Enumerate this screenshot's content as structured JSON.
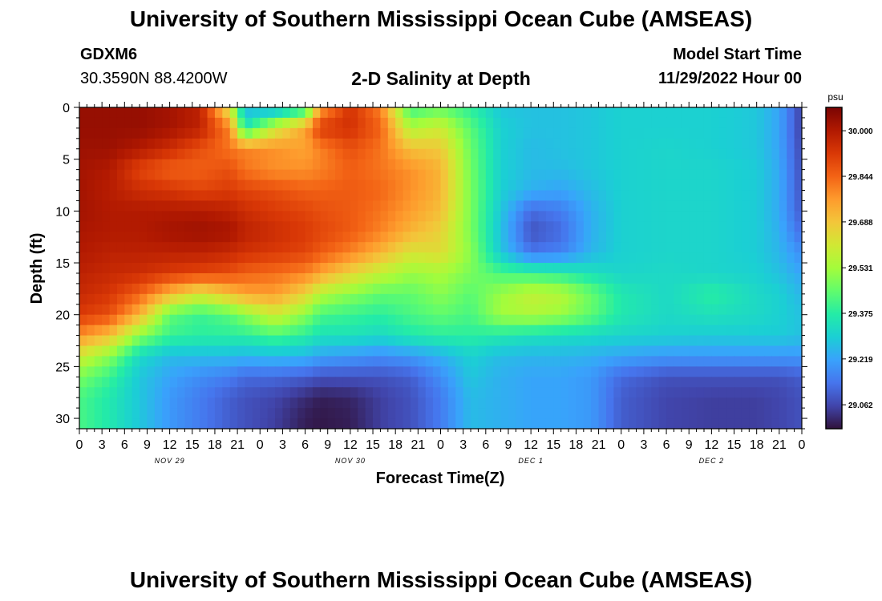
{
  "header": {
    "title": "University of Southern Mississippi Ocean Cube (AMSEAS)",
    "station": "GDXM6",
    "coords": "30.3590N  88.4200W",
    "plot_title": "2-D Salinity at Depth",
    "model_start_label": "Model Start Time",
    "model_start_value": "11/29/2022 Hour 00"
  },
  "footer": {
    "title": "University of Southern Mississippi Ocean Cube (AMSEAS)"
  },
  "colors": {
    "background": "#ffffff",
    "axis": "#000000"
  },
  "chart_data": {
    "type": "heatmap",
    "title": "2-D Salinity at Depth",
    "xlabel": "Forecast Time(Z)",
    "ylabel": "Depth (ft)",
    "x_range_hours": [
      0,
      96
    ],
    "y_range_ft": [
      0,
      31
    ],
    "x_tick_labels": [
      "0",
      "3",
      "6",
      "9",
      "12",
      "15",
      "18",
      "21",
      "0",
      "3",
      "6",
      "9",
      "12",
      "15",
      "18",
      "21",
      "0",
      "3",
      "6",
      "9",
      "12",
      "15",
      "18",
      "21",
      "0",
      "3",
      "6",
      "9",
      "12",
      "15",
      "18",
      "21",
      "0"
    ],
    "y_ticks": [
      0,
      5,
      10,
      15,
      20,
      25,
      30
    ],
    "day_labels": [
      {
        "hour": 12,
        "label": "NOV 29"
      },
      {
        "hour": 36,
        "label": "NOV 30"
      },
      {
        "hour": 60,
        "label": "DEC 1"
      },
      {
        "hour": 84,
        "label": "DEC 2"
      }
    ],
    "colorbar": {
      "unit": "psu",
      "range": [
        28.98,
        30.08
      ],
      "tick_values": [
        30.0,
        29.844,
        29.688,
        29.531,
        29.375,
        29.219,
        29.062
      ],
      "tick_labels": [
        "30.000",
        "29.844",
        "29.688",
        "29.531",
        "29.375",
        "29.219",
        "29.062"
      ],
      "colors": [
        "#30123b",
        "#4145ab",
        "#4675ed",
        "#39a2fc",
        "#1bcfd4",
        "#24eca6",
        "#61fc6c",
        "#a4fc3b",
        "#d1e834",
        "#f3c63a",
        "#fe9b2d",
        "#f36315",
        "#d93806",
        "#b11901",
        "#7a0403"
      ]
    },
    "depth_levels_ft": [
      0,
      2,
      4,
      6,
      8,
      10,
      12,
      14,
      16,
      18,
      20,
      22,
      24,
      26,
      28,
      30,
      31
    ],
    "time_knots_hours": [
      0,
      4,
      8,
      12,
      16,
      20,
      22,
      26,
      30,
      32,
      36,
      40,
      44,
      48,
      52,
      56,
      60,
      64,
      68,
      72,
      78,
      84,
      90,
      93,
      96
    ],
    "salinity_psu": [
      [
        30.04,
        30.04,
        30.04,
        30.02,
        29.98,
        29.6,
        29.25,
        29.22,
        29.35,
        29.75,
        29.94,
        29.8,
        29.4,
        29.45,
        29.38,
        29.28,
        29.27,
        29.27,
        29.28,
        29.3,
        29.3,
        29.3,
        29.28,
        29.22,
        29.05
      ],
      [
        30.04,
        30.04,
        30.04,
        30.02,
        29.98,
        29.8,
        29.35,
        29.6,
        29.75,
        29.92,
        29.94,
        29.85,
        29.55,
        29.6,
        29.44,
        29.3,
        29.27,
        29.27,
        29.28,
        29.3,
        29.3,
        29.3,
        29.28,
        29.22,
        29.05
      ],
      [
        30.03,
        30.03,
        30.0,
        29.95,
        29.88,
        29.82,
        29.8,
        29.78,
        29.75,
        29.8,
        29.88,
        29.82,
        29.7,
        29.68,
        29.46,
        29.3,
        29.26,
        29.27,
        29.28,
        29.3,
        29.31,
        29.3,
        29.28,
        29.22,
        29.06
      ],
      [
        30.02,
        30.0,
        29.9,
        29.85,
        29.85,
        29.88,
        29.82,
        29.78,
        29.78,
        29.8,
        29.85,
        29.82,
        29.78,
        29.72,
        29.47,
        29.3,
        29.26,
        29.26,
        29.28,
        29.3,
        29.31,
        29.31,
        29.29,
        29.23,
        29.07
      ],
      [
        30.02,
        29.99,
        29.95,
        29.93,
        29.9,
        29.92,
        29.9,
        29.88,
        29.85,
        29.85,
        29.86,
        29.84,
        29.78,
        29.72,
        29.48,
        29.3,
        29.24,
        29.22,
        29.26,
        29.3,
        29.31,
        29.31,
        29.29,
        29.23,
        29.08
      ],
      [
        30.02,
        30.0,
        30.0,
        30.0,
        30.0,
        29.98,
        29.95,
        29.92,
        29.9,
        29.88,
        29.86,
        29.82,
        29.76,
        29.7,
        29.48,
        29.28,
        29.12,
        29.15,
        29.24,
        29.3,
        29.31,
        29.31,
        29.29,
        29.23,
        29.09
      ],
      [
        30.01,
        30.0,
        30.0,
        30.02,
        30.03,
        30.02,
        29.98,
        29.95,
        29.92,
        29.9,
        29.86,
        29.8,
        29.72,
        29.66,
        29.48,
        29.27,
        29.08,
        29.12,
        29.24,
        29.3,
        29.31,
        29.31,
        29.29,
        29.24,
        29.12
      ],
      [
        30.0,
        29.98,
        29.98,
        29.98,
        29.98,
        29.96,
        29.94,
        29.92,
        29.9,
        29.86,
        29.8,
        29.72,
        29.62,
        29.64,
        29.5,
        29.28,
        29.14,
        29.16,
        29.25,
        29.3,
        29.31,
        29.31,
        29.29,
        29.25,
        29.18
      ],
      [
        29.98,
        29.96,
        29.95,
        29.92,
        29.9,
        29.88,
        29.85,
        29.83,
        29.8,
        29.75,
        29.66,
        29.58,
        29.52,
        29.54,
        29.48,
        29.42,
        29.4,
        29.38,
        29.34,
        29.31,
        29.32,
        29.31,
        29.3,
        29.27,
        29.22
      ],
      [
        29.96,
        29.93,
        29.85,
        29.72,
        29.62,
        29.7,
        29.75,
        29.76,
        29.66,
        29.56,
        29.5,
        29.45,
        29.45,
        29.5,
        29.44,
        29.52,
        29.58,
        29.56,
        29.46,
        29.36,
        29.32,
        29.38,
        29.32,
        29.3,
        29.25
      ],
      [
        29.92,
        29.88,
        29.72,
        29.45,
        29.4,
        29.44,
        29.5,
        29.6,
        29.5,
        29.42,
        29.4,
        29.38,
        29.42,
        29.45,
        29.42,
        29.53,
        29.55,
        29.52,
        29.45,
        29.36,
        29.32,
        29.34,
        29.32,
        29.3,
        29.27
      ],
      [
        29.78,
        29.7,
        29.5,
        29.4,
        29.38,
        29.38,
        29.38,
        29.42,
        29.38,
        29.34,
        29.34,
        29.32,
        29.36,
        29.38,
        29.38,
        29.36,
        29.34,
        29.33,
        29.32,
        29.31,
        29.3,
        29.29,
        29.29,
        29.29,
        29.27
      ],
      [
        29.6,
        29.5,
        29.32,
        29.26,
        29.26,
        29.26,
        29.25,
        29.26,
        29.25,
        29.22,
        29.2,
        29.18,
        29.2,
        29.24,
        29.3,
        29.26,
        29.25,
        29.25,
        29.24,
        29.22,
        29.2,
        29.2,
        29.2,
        29.2,
        29.2
      ],
      [
        29.48,
        29.4,
        29.28,
        29.22,
        29.18,
        29.15,
        29.12,
        29.12,
        29.1,
        29.08,
        29.08,
        29.08,
        29.1,
        29.18,
        29.28,
        29.24,
        29.22,
        29.22,
        29.2,
        29.12,
        29.08,
        29.08,
        29.08,
        29.08,
        29.1
      ],
      [
        29.42,
        29.36,
        29.28,
        29.2,
        29.15,
        29.1,
        29.08,
        29.06,
        29.02,
        29.0,
        29.01,
        29.05,
        29.08,
        29.15,
        29.26,
        29.24,
        29.22,
        29.22,
        29.2,
        29.1,
        29.06,
        29.05,
        29.05,
        29.06,
        29.08
      ],
      [
        29.42,
        29.36,
        29.28,
        29.2,
        29.15,
        29.1,
        29.08,
        29.05,
        29.0,
        28.99,
        29.0,
        29.05,
        29.08,
        29.15,
        29.26,
        29.24,
        29.22,
        29.22,
        29.2,
        29.1,
        29.06,
        29.05,
        29.05,
        29.06,
        29.08
      ],
      [
        29.42,
        29.36,
        29.28,
        29.2,
        29.15,
        29.1,
        29.08,
        29.05,
        29.0,
        28.99,
        29.0,
        29.05,
        29.08,
        29.15,
        29.26,
        29.24,
        29.22,
        29.22,
        29.2,
        29.1,
        29.06,
        29.05,
        29.05,
        29.06,
        29.08
      ]
    ]
  }
}
